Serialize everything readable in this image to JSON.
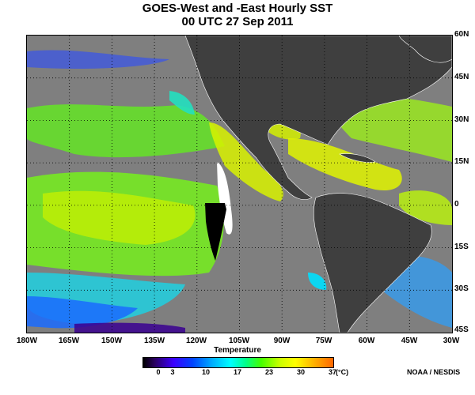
{
  "header": {
    "title": "GOES-West and -East Hourly SST",
    "subtitle": "00 UTC  27 Sep 2011"
  },
  "map": {
    "lat_labels": [
      "60N",
      "45N",
      "30N",
      "15N",
      "0",
      "15S",
      "30S",
      "45S"
    ],
    "lon_labels": [
      "180W",
      "165W",
      "150W",
      "135W",
      "120W",
      "105W",
      "90W",
      "75W",
      "60W",
      "45W",
      "30W"
    ],
    "colors": {
      "ocean_nodata": "#7f7f7f",
      "land": "#3f3f3f",
      "grid": "#000000",
      "border": "#ffffff"
    }
  },
  "colorbar": {
    "label": "Temperature",
    "ticks": [
      "0",
      "3",
      "10",
      "17",
      "23",
      "30",
      "37"
    ],
    "unit": "(°C)"
  },
  "credit": "NOAA / NESDIS"
}
